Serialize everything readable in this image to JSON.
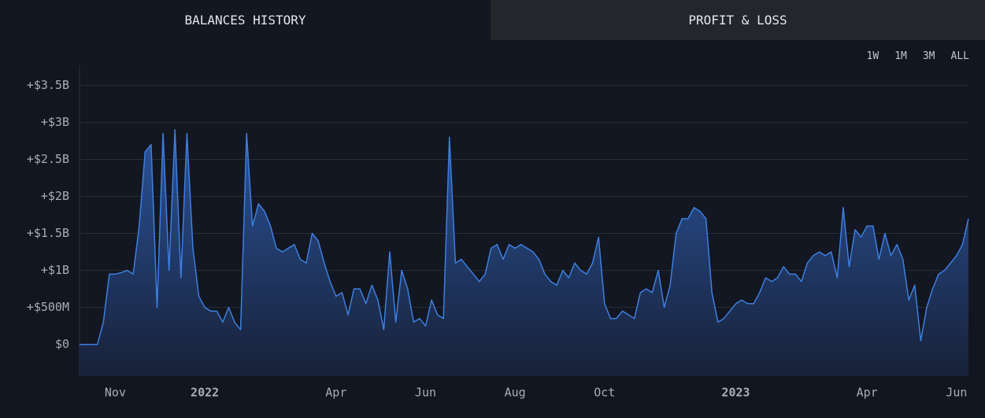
{
  "tabs": [
    "BALANCES HISTORY",
    "PROFIT & LOSS"
  ],
  "ranges": [
    "1W",
    "1M",
    "3M",
    "ALL"
  ],
  "chart_data": {
    "type": "area",
    "categories": [
      null,
      null,
      null,
      null,
      null,
      null,
      "Nov",
      null,
      null,
      null,
      null,
      null,
      null,
      null,
      null,
      null,
      null,
      null,
      null,
      null,
      null,
      "2022",
      null,
      null,
      null,
      null,
      null,
      null,
      null,
      null,
      null,
      null,
      null,
      null,
      null,
      null,
      null,
      null,
      null,
      null,
      null,
      null,
      null,
      "Apr",
      null,
      null,
      null,
      null,
      null,
      null,
      null,
      null,
      null,
      null,
      null,
      null,
      null,
      null,
      "Jun",
      null,
      null,
      null,
      null,
      null,
      null,
      null,
      null,
      null,
      null,
      null,
      null,
      null,
      null,
      "Aug",
      null,
      null,
      null,
      null,
      null,
      null,
      null,
      null,
      null,
      null,
      null,
      null,
      null,
      null,
      "Oct",
      null,
      null,
      null,
      null,
      null,
      null,
      null,
      null,
      null,
      null,
      null,
      null,
      null,
      null,
      null,
      null,
      null,
      null,
      null,
      null,
      null,
      "2023",
      null,
      null,
      null,
      null,
      null,
      null,
      null,
      null,
      null,
      null,
      null,
      null,
      null,
      null,
      null,
      null,
      null,
      null,
      null,
      null,
      null,
      "Apr",
      null,
      null,
      null,
      null,
      null,
      null,
      null,
      null,
      null,
      null,
      null,
      null,
      null,
      null,
      "Jun",
      null,
      null
    ],
    "values": [
      0,
      0,
      0,
      0,
      300000000,
      950000000,
      950000000,
      970000000,
      1000000000,
      950000000,
      1600000000,
      2600000000,
      2700000000,
      500000000,
      2850000000,
      1000000000,
      2900000000,
      900000000,
      2850000000,
      1300000000,
      650000000,
      500000000,
      450000000,
      450000000,
      300000000,
      500000000,
      300000000,
      200000000,
      2850000000,
      1600000000,
      1900000000,
      1800000000,
      1600000000,
      1300000000,
      1250000000,
      1300000000,
      1350000000,
      1150000000,
      1100000000,
      1500000000,
      1400000000,
      1100000000,
      850000000,
      650000000,
      700000000,
      400000000,
      750000000,
      750000000,
      550000000,
      800000000,
      600000000,
      200000000,
      1250000000,
      300000000,
      1000000000,
      750000000,
      300000000,
      350000000,
      250000000,
      600000000,
      400000000,
      350000000,
      2800000000,
      1100000000,
      1150000000,
      1050000000,
      950000000,
      850000000,
      950000000,
      1300000000,
      1350000000,
      1150000000,
      1350000000,
      1300000000,
      1350000000,
      1300000000,
      1250000000,
      1150000000,
      950000000,
      850000000,
      800000000,
      1000000000,
      900000000,
      1100000000,
      1000000000,
      950000000,
      1100000000,
      1450000000,
      550000000,
      350000000,
      350000000,
      450000000,
      400000000,
      350000000,
      700000000,
      750000000,
      700000000,
      1000000000,
      500000000,
      800000000,
      1500000000,
      1700000000,
      1700000000,
      1850000000,
      1800000000,
      1700000000,
      700000000,
      300000000,
      350000000,
      450000000,
      550000000,
      600000000,
      550000000,
      550000000,
      700000000,
      900000000,
      850000000,
      900000000,
      1050000000,
      950000000,
      950000000,
      850000000,
      1100000000,
      1200000000,
      1250000000,
      1200000000,
      1250000000,
      900000000,
      1850000000,
      1050000000,
      1550000000,
      1450000000,
      1600000000,
      1600000000,
      1150000000,
      1500000000,
      1200000000,
      1350000000,
      1150000000,
      600000000,
      800000000,
      50000000,
      500000000,
      750000000,
      950000000,
      1000000000,
      1100000000,
      1200000000,
      1350000000,
      1700000000
    ],
    "color": "#3d7fe0",
    "ylim": [
      -430000000,
      3770000000
    ],
    "yticks": [
      {
        "value": 0,
        "label": "$0"
      },
      {
        "value": 500000000,
        "label": "+$500M"
      },
      {
        "value": 1000000000,
        "label": "+$1B"
      },
      {
        "value": 1500000000,
        "label": "+$1.5B"
      },
      {
        "value": 2000000000,
        "label": "+$2B"
      },
      {
        "value": 2500000000,
        "label": "+$2.5B"
      },
      {
        "value": 3000000000,
        "label": "+$3B"
      },
      {
        "value": 3500000000,
        "label": "+$3.5B"
      }
    ],
    "grid": true
  }
}
